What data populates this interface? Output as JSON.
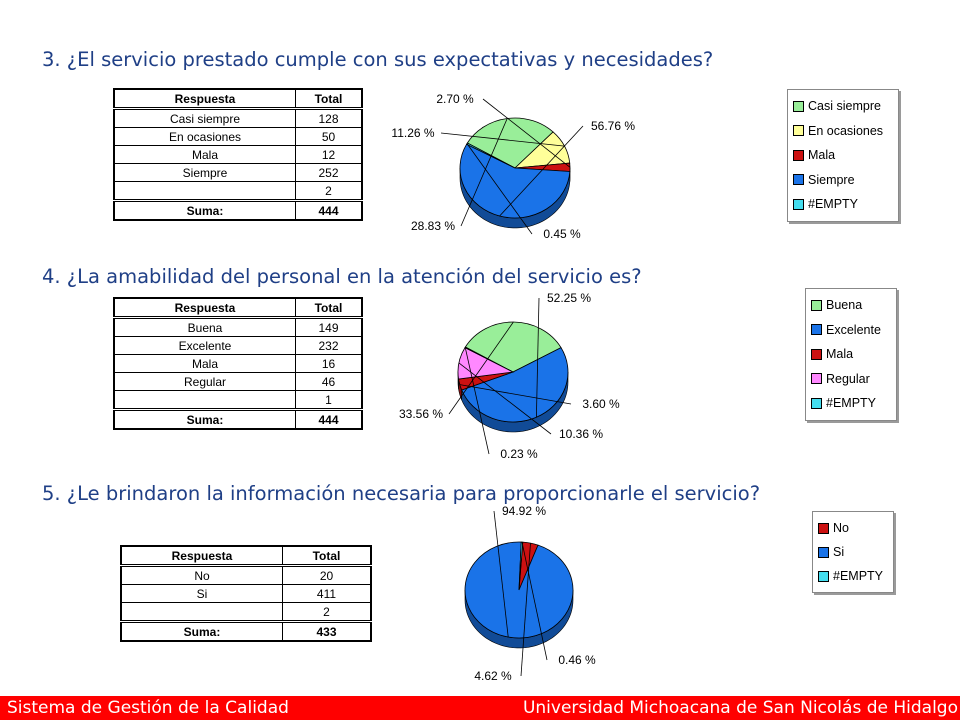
{
  "questions": {
    "q3": "3. ¿El servicio prestado cumple con sus expectativas y necesidades?",
    "q4": "4. ¿La amabilidad del personal en la atención del servicio es?",
    "q5": "5. ¿Le brindaron la información necesaria para proporcionarle el servicio?"
  },
  "tables": {
    "t1": {
      "headers": [
        "Respuesta",
        "Total"
      ],
      "rows": [
        [
          "Casi siempre",
          "128"
        ],
        [
          "En ocasiones",
          "50"
        ],
        [
          "Mala",
          "12"
        ],
        [
          "Siempre",
          "252"
        ],
        [
          "",
          "2"
        ]
      ],
      "sum_label": "Suma:",
      "sum_value": "444"
    },
    "t2": {
      "headers": [
        "Respuesta",
        "Total"
      ],
      "rows": [
        [
          "Buena",
          "149"
        ],
        [
          "Excelente",
          "232"
        ],
        [
          "Mala",
          "16"
        ],
        [
          "Regular",
          "46"
        ],
        [
          "",
          "1"
        ]
      ],
      "sum_label": "Suma:",
      "sum_value": "444"
    },
    "t3": {
      "headers": [
        "Respuesta",
        "Total"
      ],
      "rows": [
        [
          "No",
          "20"
        ],
        [
          "Si",
          "411"
        ],
        [
          "",
          "2"
        ]
      ],
      "sum_label": "Suma:",
      "sum_value": "433"
    }
  },
  "legends": {
    "lg1": [
      {
        "label": "Casi siempre",
        "color": "#99ee99"
      },
      {
        "label": "En ocasiones",
        "color": "#ffff99"
      },
      {
        "label": "Mala",
        "color": "#cc1111"
      },
      {
        "label": "Siempre",
        "color": "#1a73e8"
      },
      {
        "label": "#EMPTY",
        "color": "#44ddee"
      }
    ],
    "lg2": [
      {
        "label": "Buena",
        "color": "#99ee99"
      },
      {
        "label": "Excelente",
        "color": "#1a73e8"
      },
      {
        "label": "Mala",
        "color": "#cc1111"
      },
      {
        "label": "Regular",
        "color": "#ff88ff"
      },
      {
        "label": "#EMPTY",
        "color": "#44ddee"
      }
    ],
    "lg3": [
      {
        "label": "No",
        "color": "#cc1111"
      },
      {
        "label": "Si",
        "color": "#1a73e8"
      },
      {
        "label": "#EMPTY",
        "color": "#44ddee"
      }
    ]
  },
  "chart_data": [
    {
      "type": "pie",
      "categories": [
        "Casi siempre",
        "En ocasiones",
        "Mala",
        "Siempre",
        "#EMPTY"
      ],
      "values": [
        28.83,
        11.26,
        2.7,
        56.76,
        0.45
      ],
      "labels": [
        "28.83 %",
        "11.26 %",
        "2.70 %",
        "56.76 %",
        "0.45 %"
      ],
      "colors": [
        "#99ee99",
        "#ffff99",
        "#cc1111",
        "#1a73e8",
        "#44ddee"
      ]
    },
    {
      "type": "pie",
      "categories": [
        "Buena",
        "Excelente",
        "Mala",
        "Regular",
        "#EMPTY"
      ],
      "values": [
        33.56,
        52.25,
        3.6,
        10.36,
        0.23
      ],
      "labels": [
        "33.56 %",
        "52.25 %",
        "3.60 %",
        "10.36 %",
        "0.23 %"
      ],
      "colors": [
        "#99ee99",
        "#1a73e8",
        "#cc1111",
        "#ff88ff",
        "#44ddee"
      ]
    },
    {
      "type": "pie",
      "categories": [
        "No",
        "Si",
        "#EMPTY"
      ],
      "values": [
        4.62,
        94.92,
        0.46
      ],
      "labels": [
        "4.62 %",
        "94.92 %",
        "0.46 %"
      ],
      "colors": [
        "#cc1111",
        "#1a73e8",
        "#44ddee"
      ]
    }
  ],
  "footer": {
    "left": "Sistema de Gestión de la Calidad",
    "right": "Universidad Michoacana de San Nicolás de Hidalgo"
  }
}
